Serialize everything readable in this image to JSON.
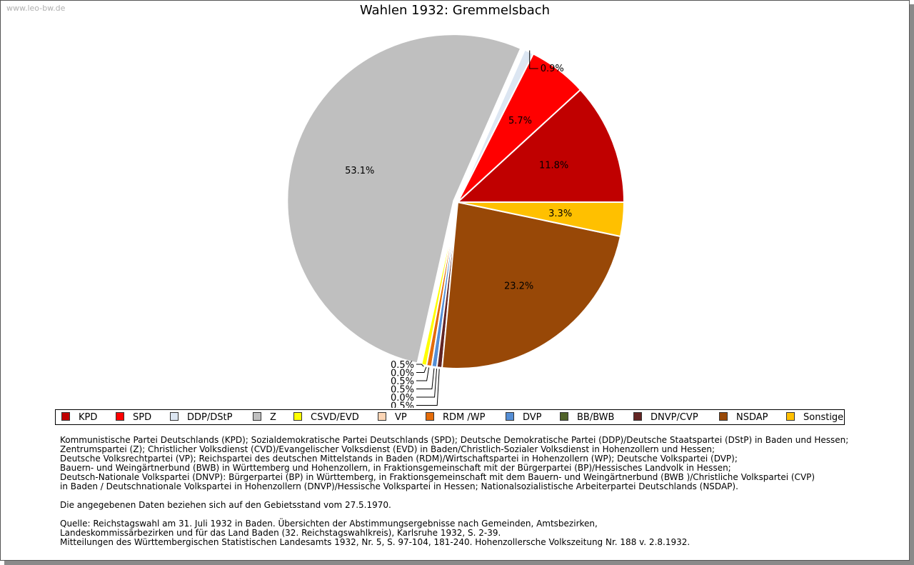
{
  "watermark": "www.leo-bw.de",
  "chart_data": {
    "type": "pie",
    "title": "Wahlen 1932: Gremmelsbach",
    "categories": [
      "KPD",
      "SPD",
      "DDP/DStP",
      "Z",
      "CSVD/EVD",
      "VP",
      "RDM /WP",
      "DVP",
      "BB/BWB",
      "DNVP/CVP",
      "NSDAP",
      "Sonstige"
    ],
    "values": [
      11.8,
      5.7,
      0.9,
      53.1,
      0.5,
      0.0,
      0.5,
      0.5,
      0.0,
      0.5,
      23.2,
      3.3
    ],
    "labels": [
      "11.8%",
      "5.7%",
      "0.9%",
      "53.1%",
      "0.5%",
      "0.0%",
      "0.5%",
      "0.5%",
      "0.0%",
      "0.5%",
      "23.2%",
      "3.3%"
    ],
    "colors": [
      "#c00000",
      "#ff0000",
      "#dce6f2",
      "#bfbfbf",
      "#ffff00",
      "#fcd5b5",
      "#e46c0a",
      "#558ed5",
      "#4f6228",
      "#632523",
      "#984807",
      "#ffc000"
    ],
    "legend_position": "bottom"
  },
  "footnotes": [
    "Kommunistische Partei Deutschlands (KPD); Sozialdemokratische Partei Deutschlands (SPD); Deutsche Demokratische Partei (DDP)/Deutsche Staatspartei (DStP) in Baden und Hessen;\nZentrumspartei (Z); Christlicher Volksdienst (CVD)/Evangelischer Volksdienst (EVD) in Baden/Christlich-Sozialer Volksdienst in Hohenzollern und Hessen;\nDeutsche Volksrechtpartei (VP); Reichspartei des deutschen Mittelstands in Baden (RDM)/Wirtschaftspartei in Hohenzollern (WP); Deutsche Volkspartei (DVP);\nBauern- und Weingärtnerbund (BWB) in Württemberg und Hohenzollern, in Fraktionsgemeinschaft mit der Bürgerpartei (BP)/Hessisches Landvolk in Hessen;\nDeutsch-Nationale Volkspartei (DNVP): Bürgerpartei (BP) in Württemberg, in Fraktionsgemeinschaft mit dem Bauern- und Weingärtnerbund (BWB )/Christliche Volkspartei (CVP)\nin Baden / Deutschnationale Volkspartei in Hohenzollern (DNVP)/Hessische Volkspartei in Hessen; Nationalsozialistische Arbeiterpartei Deutschlands (NSDAP).",
    "Die angegebenen Daten beziehen sich auf den Gebietsstand vom 27.5.1970.",
    "Quelle: Reichstagswahl am 31. Juli 1932 in Baden. Übersichten der Abstimmungsergebnisse nach Gemeinden, Amtsbezirken,\nLandeskommissärbezirken und für das Land Baden (32. Reichstagswahlkreis), Karlsruhe 1932, S. 2-39.\nMitteilungen des Württembergischen Statistischen Landesamts 1932, Nr. 5, S. 97-104, 181-240. Hohenzollersche Volkszeitung Nr. 188 v. 2.8.1932."
  ]
}
